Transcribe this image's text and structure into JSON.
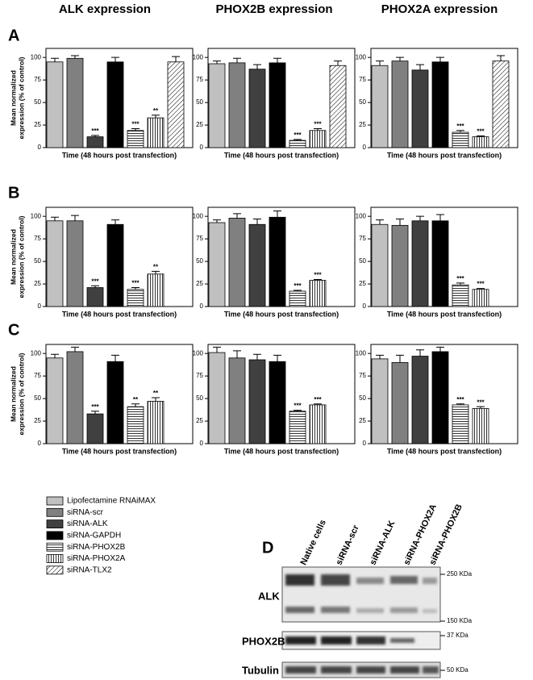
{
  "column_titles": [
    "ALK expression",
    "PHOX2B expression",
    "PHOX2A expression"
  ],
  "panels": [
    "A",
    "B",
    "C",
    "D"
  ],
  "legend": [
    {
      "name": "Lipofectamine RNAiMAX",
      "color": "#c0c0c0",
      "pattern": "solid"
    },
    {
      "name": "siRNA-scr",
      "color": "#808080",
      "pattern": "solid"
    },
    {
      "name": "siRNA-ALK",
      "color": "#404040",
      "pattern": "solid"
    },
    {
      "name": "siRNA-GAPDH",
      "color": "#000000",
      "pattern": "solid"
    },
    {
      "name": "siRNA-PHOX2B",
      "color": "#000000",
      "pattern": "horizontal"
    },
    {
      "name": "siRNA-PHOX2A",
      "color": "#000000",
      "pattern": "vertical"
    },
    {
      "name": "siRNA-TLX2",
      "color": "#000000",
      "pattern": "diagonal"
    }
  ],
  "chart_data": [
    {
      "type": "bar",
      "ylabel": [
        "Mean normalized",
        "expression (% of control)"
      ],
      "xlabel": "Time (48 hours post transfection)",
      "values": [
        95,
        99,
        12,
        95,
        19,
        33,
        95
      ],
      "errors": [
        4,
        3,
        1.5,
        5,
        2,
        3,
        6
      ],
      "annotations": [
        null,
        null,
        "***",
        null,
        "***",
        "**",
        null
      ],
      "ylim": [
        0,
        110
      ],
      "yticks": [
        0,
        25,
        50,
        75,
        100
      ]
    },
    {
      "type": "bar",
      "xlabel": "Time (48 hours post transfection)",
      "values": [
        93,
        94,
        87,
        94,
        8,
        19,
        91
      ],
      "errors": [
        3,
        5,
        5,
        5,
        1,
        2,
        5
      ],
      "annotations": [
        null,
        null,
        null,
        null,
        "***",
        "***",
        null
      ],
      "ylim": [
        0,
        110
      ],
      "yticks": [
        0,
        25,
        50,
        75,
        100
      ]
    },
    {
      "type": "bar",
      "xlabel": "Time (48 hours post transfection)",
      "values": [
        91,
        96,
        86,
        95,
        17,
        12,
        96
      ],
      "errors": [
        5,
        4,
        6,
        5,
        2,
        1,
        6
      ],
      "annotations": [
        null,
        null,
        null,
        null,
        "***",
        "***",
        null
      ],
      "ylim": [
        0,
        110
      ],
      "yticks": [
        0,
        25,
        50,
        75,
        100
      ]
    },
    {
      "type": "bar",
      "ylabel": [
        "Mean normalized",
        "expression (% of control)"
      ],
      "xlabel": "Time (48 hours post transfection)",
      "values": [
        95,
        95,
        21,
        91,
        19,
        36
      ],
      "errors": [
        4,
        6,
        2,
        5,
        2,
        3
      ],
      "annotations": [
        null,
        null,
        "***",
        null,
        "***",
        "**"
      ],
      "ylim": [
        0,
        110
      ],
      "yticks": [
        0,
        25,
        50,
        75,
        100
      ]
    },
    {
      "type": "bar",
      "xlabel": "Time (48 hours post transfection)",
      "values": [
        93,
        98,
        91,
        99,
        17,
        29
      ],
      "errors": [
        3,
        5,
        6,
        7,
        1,
        1
      ],
      "annotations": [
        null,
        null,
        null,
        null,
        "***",
        "***"
      ],
      "ylim": [
        0,
        110
      ],
      "yticks": [
        0,
        25,
        50,
        75,
        100
      ]
    },
    {
      "type": "bar",
      "xlabel": "Time (48 hours post transfection)",
      "values": [
        91,
        90,
        95,
        95,
        24,
        19
      ],
      "errors": [
        5,
        7,
        5,
        7,
        2,
        1
      ],
      "annotations": [
        null,
        null,
        null,
        null,
        "***",
        "***"
      ],
      "ylim": [
        0,
        110
      ],
      "yticks": [
        0,
        25,
        50,
        75,
        100
      ]
    },
    {
      "type": "bar",
      "ylabel": [
        "Mean normalized",
        "expression (% of control)"
      ],
      "xlabel": "Time (48 hours post transfection)",
      "values": [
        95,
        102,
        33,
        91,
        41,
        47
      ],
      "errors": [
        4,
        5,
        3,
        7,
        3,
        4
      ],
      "annotations": [
        null,
        null,
        "***",
        null,
        "**",
        "**"
      ],
      "ylim": [
        0,
        110
      ],
      "yticks": [
        0,
        25,
        50,
        75,
        100
      ]
    },
    {
      "type": "bar",
      "xlabel": "Time (48 hours post transfection)",
      "values": [
        101,
        95,
        93,
        91,
        36,
        43
      ],
      "errors": [
        6,
        8,
        6,
        7,
        1,
        1
      ],
      "annotations": [
        null,
        null,
        null,
        null,
        "***",
        "***"
      ],
      "ylim": [
        0,
        110
      ],
      "yticks": [
        0,
        25,
        50,
        75,
        100
      ]
    },
    {
      "type": "bar",
      "xlabel": "Time (48 hours post transfection)",
      "values": [
        94,
        90,
        97,
        102,
        43,
        39
      ],
      "errors": [
        4,
        8,
        7,
        5,
        1,
        2
      ],
      "annotations": [
        null,
        null,
        null,
        null,
        "***",
        "***"
      ],
      "ylim": [
        0,
        110
      ],
      "yticks": [
        0,
        25,
        50,
        75,
        100
      ]
    }
  ],
  "blot": {
    "lanes": [
      "Native cells",
      "siRNA-scr",
      "siRNA-ALK",
      "siRNA-PHOX2A",
      "siRNA-PHOX2B"
    ],
    "rows": [
      "ALK",
      "PHOX2B",
      "Tubulin"
    ],
    "markers": [
      "250 KDa",
      "150 KDa",
      "37 KDa",
      "50 KDa"
    ]
  }
}
